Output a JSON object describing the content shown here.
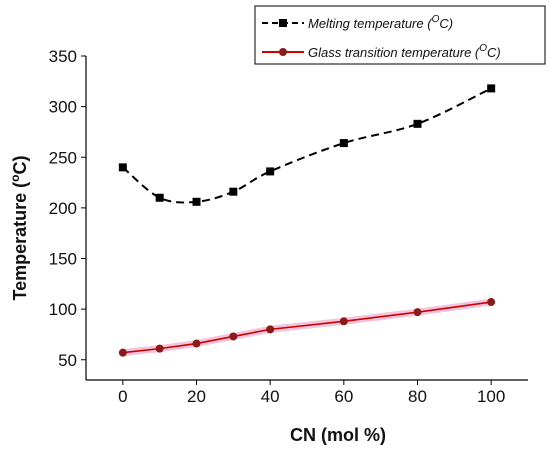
{
  "chart_data": {
    "type": "line",
    "xlabel": "CN (mol %)",
    "ylabel": "Temperature (",
    "ylabel_sup": "o",
    "ylabel_tail": "C)",
    "xlim": [
      -10,
      110
    ],
    "ylim": [
      30,
      350
    ],
    "xticks": [
      0,
      20,
      40,
      60,
      80,
      100
    ],
    "yticks": [
      50,
      100,
      150,
      200,
      250,
      300,
      350
    ],
    "legend_position": "top-right",
    "series": [
      {
        "name": "Melting temperature (",
        "name_sup": "O",
        "name_tail": "C)",
        "color": "#000000",
        "line_style": "dashed",
        "marker": "square",
        "x": [
          0,
          10,
          20,
          30,
          40,
          60,
          80,
          100
        ],
        "y": [
          240,
          210,
          206,
          216,
          236,
          264,
          283,
          318
        ]
      },
      {
        "name": "Glass transition temperature (",
        "name_sup": "O",
        "name_tail": "C)",
        "color": "#cc0000",
        "line_style": "solid",
        "marker": "circle",
        "x": [
          0,
          10,
          20,
          30,
          40,
          60,
          80,
          100
        ],
        "y": [
          57,
          61,
          66,
          73,
          80,
          88,
          97,
          107
        ]
      }
    ]
  }
}
